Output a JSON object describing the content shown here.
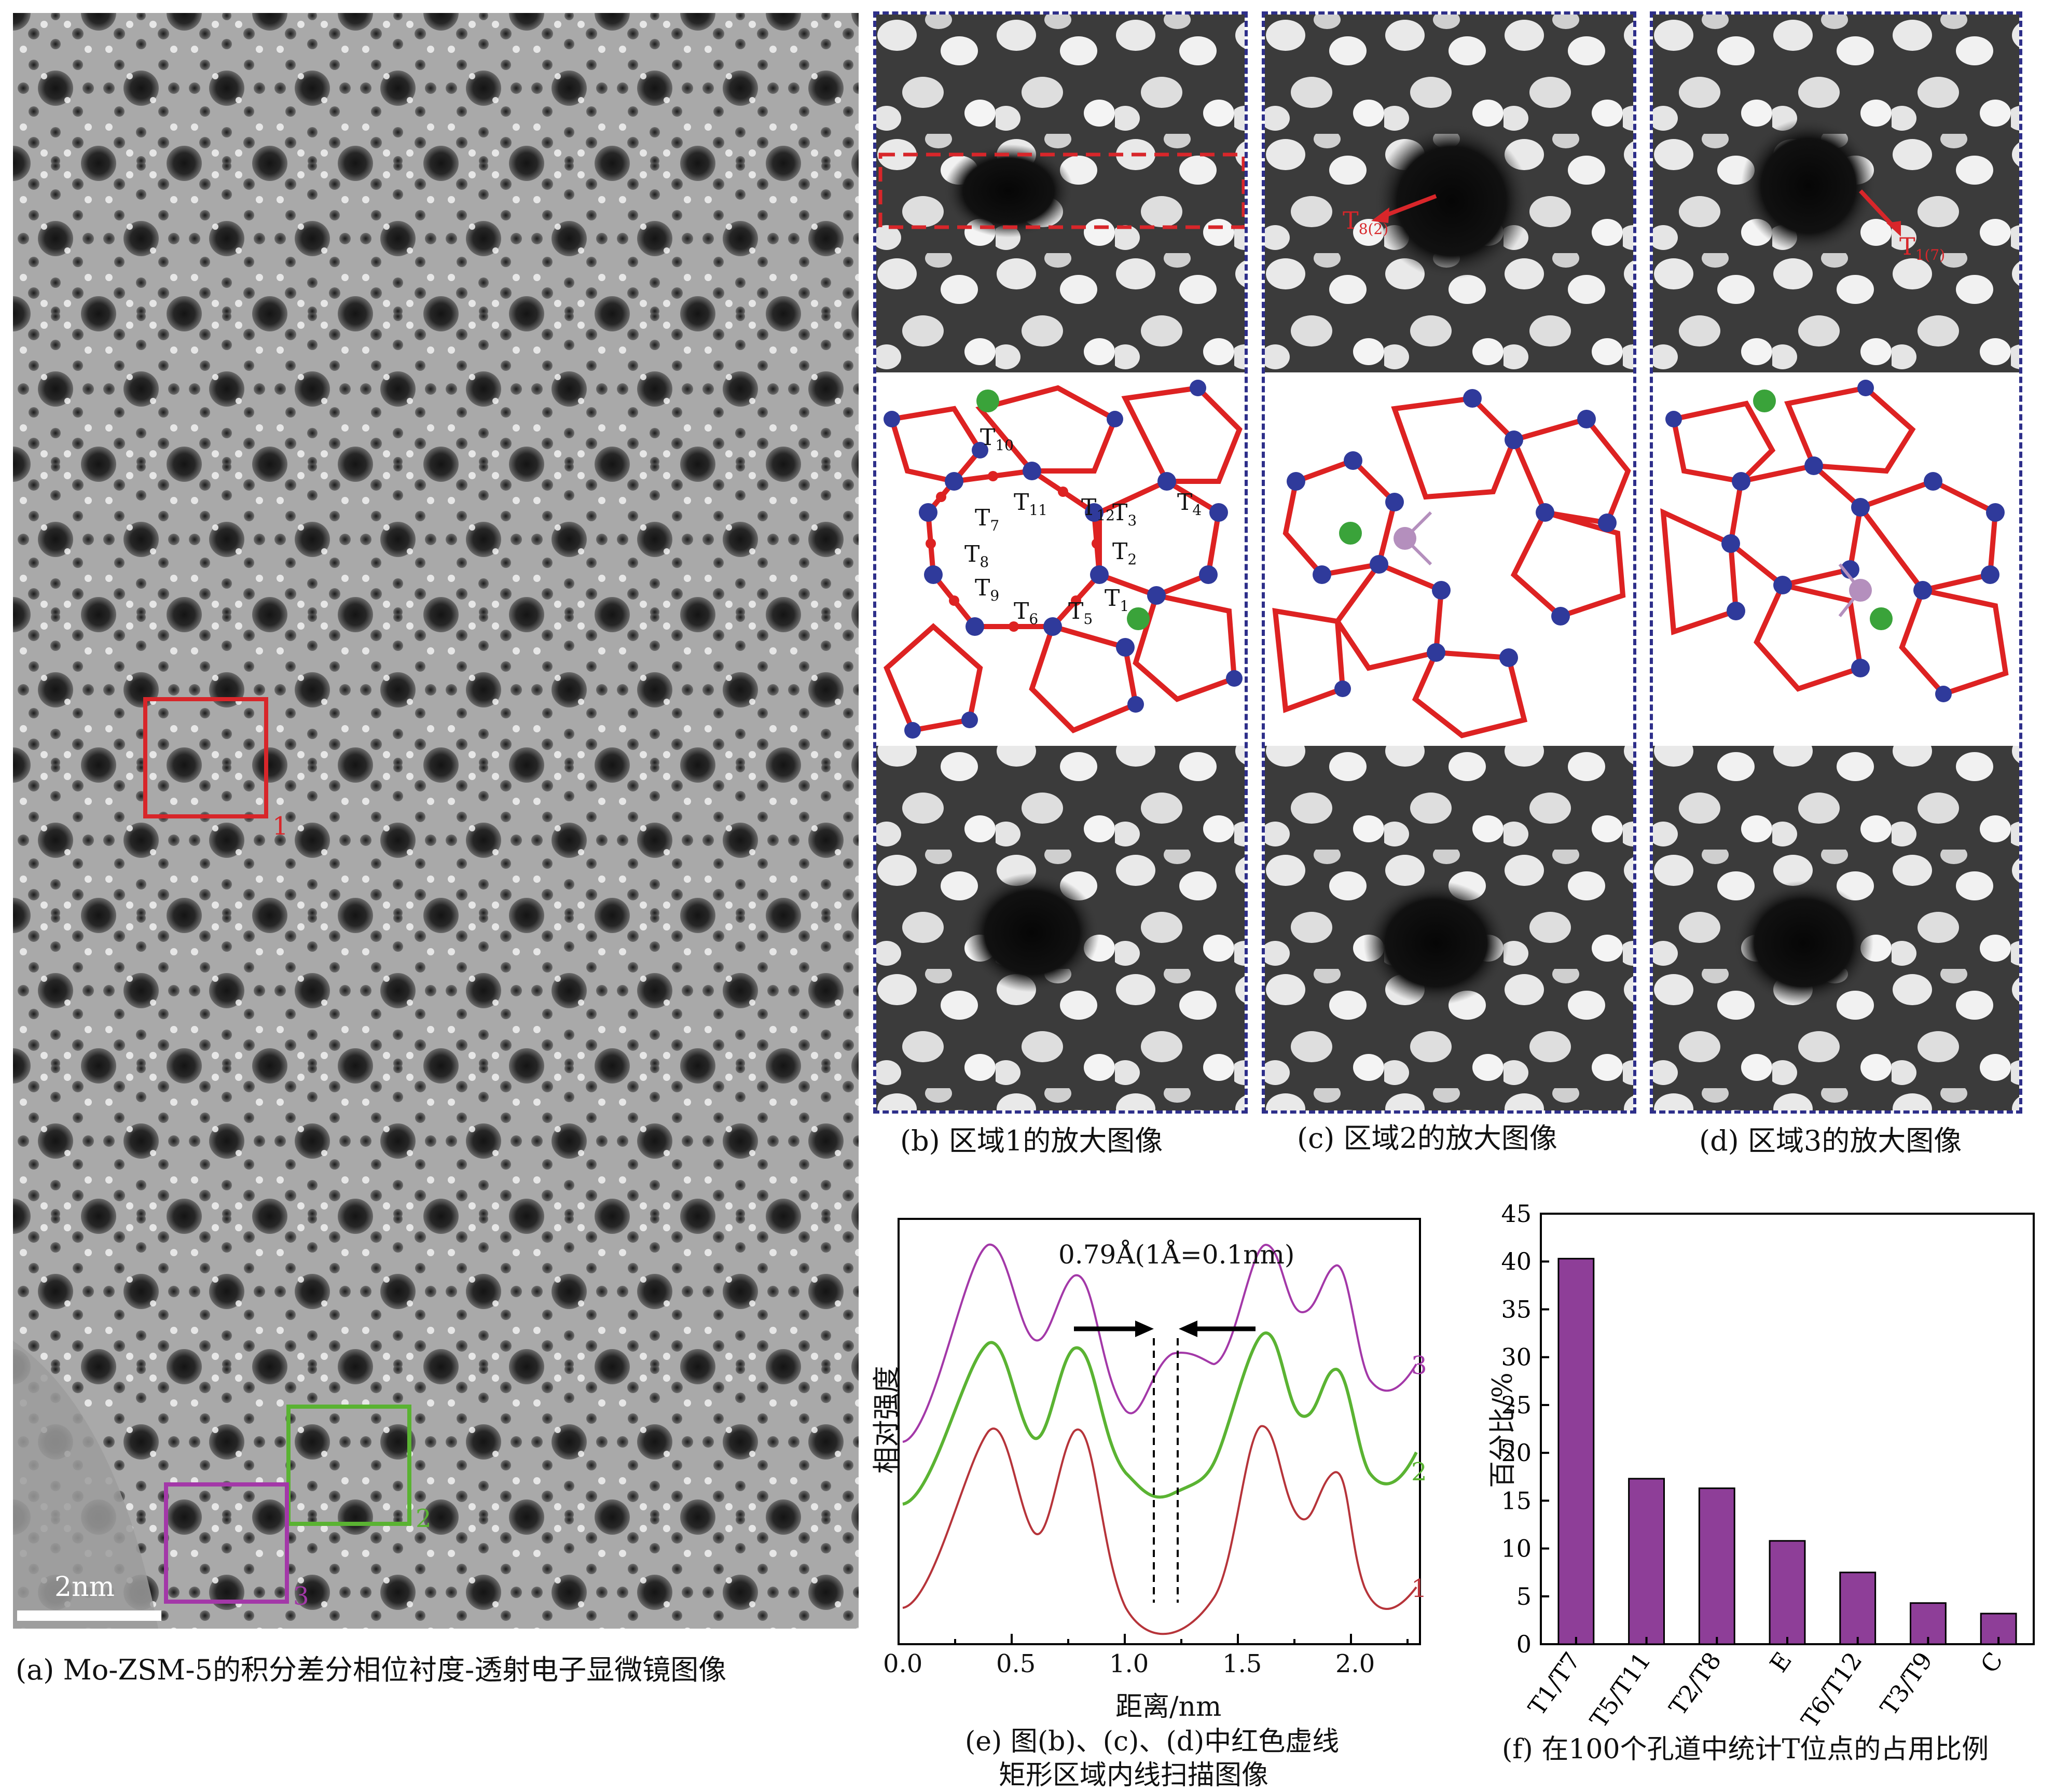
{
  "panel_a": {
    "caption": "(a) Mo-ZSM-5的积分差分相位衬度-透射电子显微镜图像",
    "scale_bar": "2nm",
    "regions": [
      {
        "label": "1",
        "color": "#d8262a"
      },
      {
        "label": "2",
        "color": "#5ab332"
      },
      {
        "label": "3",
        "color": "#a338a8"
      }
    ]
  },
  "panel_b": {
    "caption": "(b) 区域1的放大图像",
    "site_labels": [
      "T",
      "10",
      "T",
      "11",
      "T",
      "12",
      "T",
      "3",
      "T",
      "4",
      "T",
      "7",
      "T",
      "2",
      "T",
      "8",
      "T",
      "9",
      "T",
      "6",
      "T",
      "5",
      "T",
      "1"
    ]
  },
  "panel_c": {
    "caption": "(c) 区域2的放大图像",
    "arrow_label": "T",
    "arrow_sub": "8(2)"
  },
  "panel_d": {
    "caption": "(d) 区域3的放大图像",
    "arrow_label": "T",
    "arrow_sub": "1(7)"
  },
  "panel_e": {
    "caption_line1": "(e) 图(b)、(c)、(d)中红色虚线",
    "caption_line2": "矩形区域内线扫描图像",
    "annotation": "0.79Å(1Å=0.1nm)",
    "xlabel": "距离/nm",
    "ylabel": "相对强度",
    "x_ticks": [
      "0.0",
      "0.5",
      "1.0",
      "1.5",
      "2.0"
    ],
    "series_labels": [
      "1",
      "2",
      "3"
    ]
  },
  "chart_data": {
    "type": "bar",
    "categories": [
      "T1/T7",
      "T5/T11",
      "T2/T8",
      "E",
      "T6/T12",
      "T3/T9",
      "C"
    ],
    "values": [
      40.3,
      17.3,
      16.3,
      10.8,
      7.5,
      4.3,
      3.2
    ],
    "ylabel": "百分比/%",
    "ylim": [
      0,
      45
    ],
    "y_ticks": [
      "0",
      "5",
      "10",
      "15",
      "20",
      "25",
      "30",
      "35",
      "40",
      "45"
    ],
    "bar_color": "#8e3e98",
    "caption": "(f) 在100个孔道中统计T位点的占用比例"
  }
}
